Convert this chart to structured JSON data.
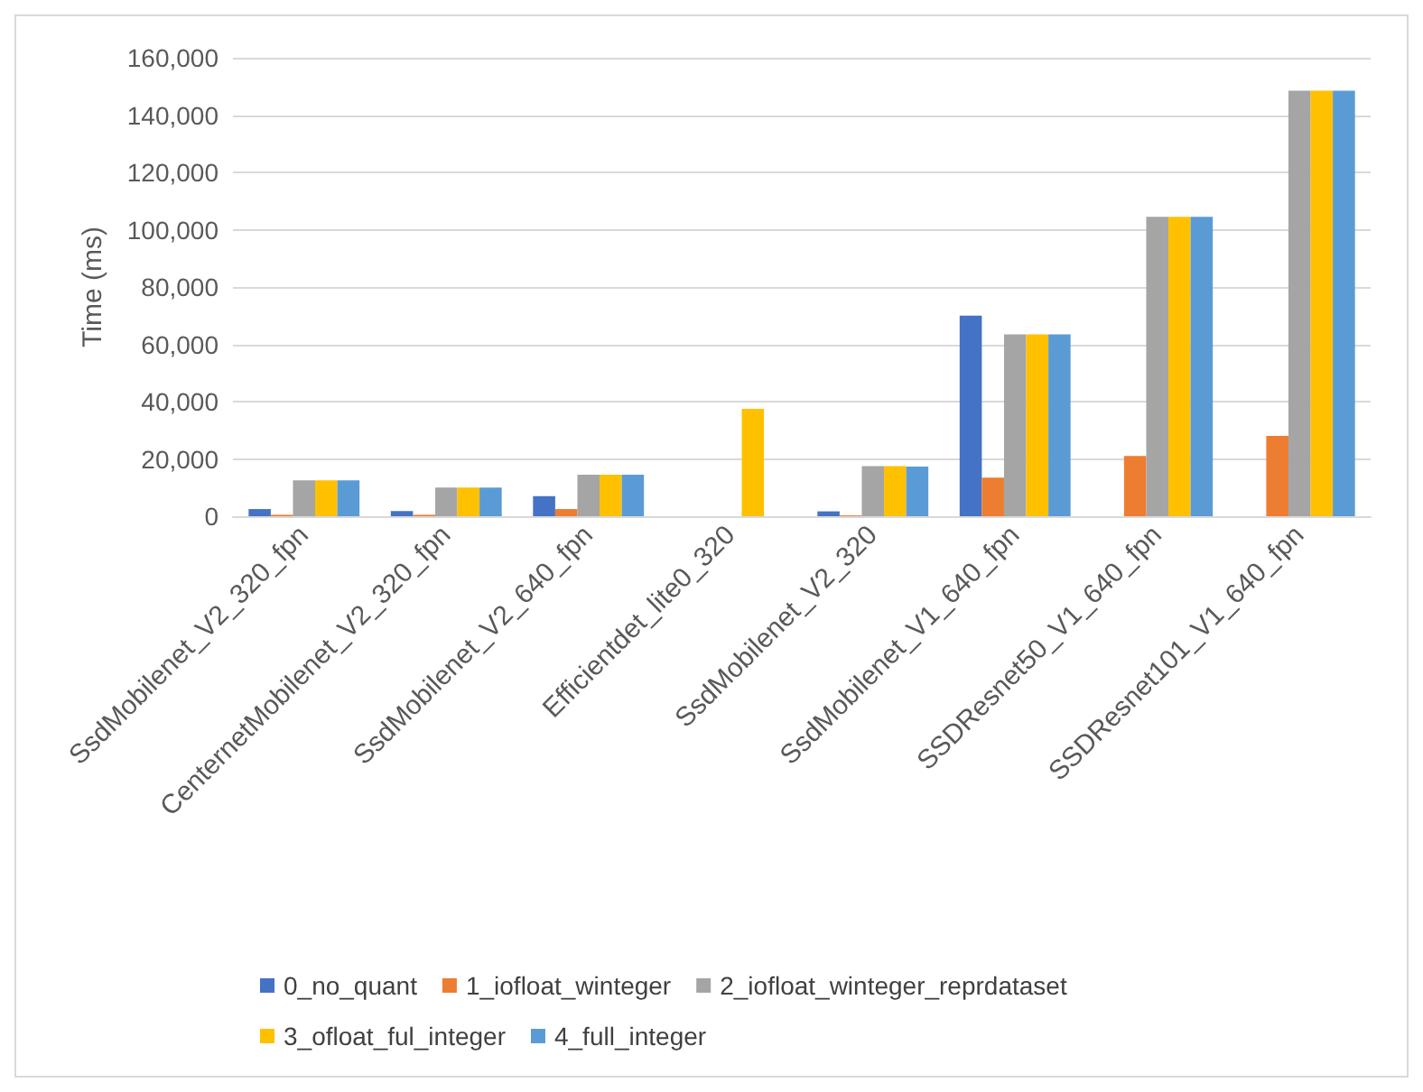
{
  "chart_data": {
    "type": "bar",
    "ylabel": "Time (ms)",
    "categories": [
      "SsdMobilenet_V2_320_fpn",
      "CenternetMobilenet_V2_320_fpn",
      "SsdMobilenet_V2_640_fpn",
      "Efficientdet_lite0_320",
      "SsdMobilenet_V2_320",
      "SsdMobilenet_V1_640_fpn",
      "SSDResnet50_V1_640_fpn",
      "SSDResnet101_V1_640_fpn"
    ],
    "series": [
      {
        "name": "0_no_quant",
        "color": "#4472c4",
        "values": [
          2500,
          1800,
          7000,
          null,
          1700,
          70000,
          null,
          null
        ]
      },
      {
        "name": "1_iofloat_winteger",
        "color": "#ed7d31",
        "values": [
          500,
          500,
          2500,
          null,
          300,
          13500,
          21000,
          28000
        ]
      },
      {
        "name": "2_iofloat_winteger_reprdataset",
        "color": "#a5a5a5",
        "values": [
          12500,
          10000,
          14500,
          null,
          17500,
          63500,
          104500,
          148500
        ]
      },
      {
        "name": "3_ofloat_ful_integer",
        "color": "#ffc000",
        "values": [
          12500,
          10000,
          14500,
          37500,
          17500,
          63500,
          104500,
          148500
        ]
      },
      {
        "name": "4_full_integer",
        "color": "#5b9bd5",
        "values": [
          12500,
          10000,
          14500,
          null,
          17300,
          63500,
          104500,
          148500
        ]
      }
    ],
    "ylim": [
      0,
      160000
    ],
    "yticks": [
      0,
      {
        "value": 20000,
        "label": "20,000"
      },
      {
        "value": 40000,
        "label": "40,000"
      },
      {
        "value": 60000,
        "label": "60,000"
      },
      {
        "value": 80000,
        "label": "80,000"
      },
      {
        "value": 100000,
        "label": "100,000"
      },
      {
        "value": 120000,
        "label": "120,000"
      },
      {
        "value": 140000,
        "label": "140,000"
      },
      {
        "value": 160000,
        "label": "160,000"
      }
    ],
    "grid": "y",
    "legend": "bottom"
  }
}
